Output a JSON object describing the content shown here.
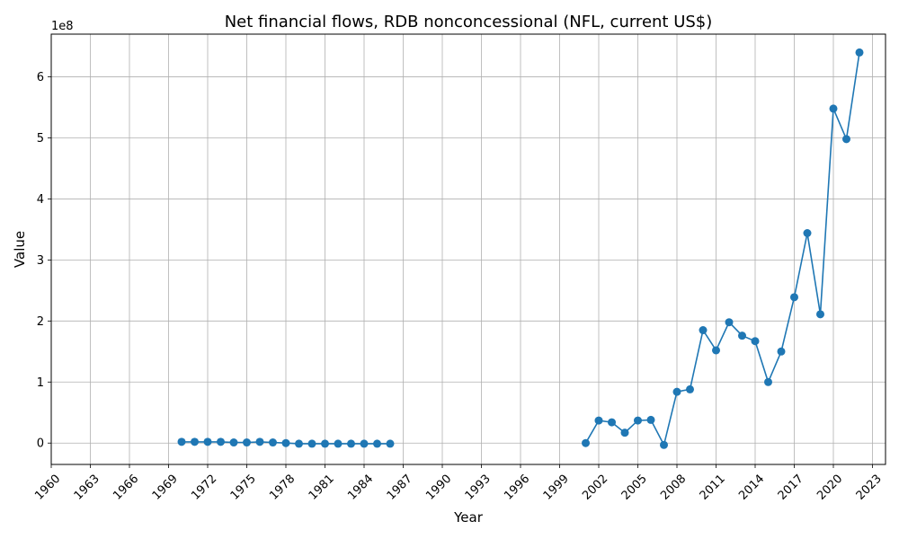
{
  "chart_data": {
    "type": "line",
    "title": "Net financial flows, RDB nonconcessional (NFL, current US$)",
    "xlabel": "Year",
    "ylabel": "Value",
    "y_scale_label": "1e8",
    "y_unit_multiplier": 100000000,
    "xlim": [
      1960,
      2024
    ],
    "ylim": [
      -0.35,
      6.7
    ],
    "x_ticks": [
      1960,
      1963,
      1966,
      1969,
      1972,
      1975,
      1978,
      1981,
      1984,
      1987,
      1990,
      1993,
      1996,
      1999,
      2002,
      2005,
      2008,
      2011,
      2014,
      2017,
      2020,
      2023
    ],
    "x_tick_labels": [
      "1960",
      "1963",
      "1966",
      "1969",
      "1972",
      "1975",
      "1978",
      "1981",
      "1984",
      "1987",
      "1990",
      "1993",
      "1996",
      "1999",
      "2002",
      "2005",
      "2008",
      "2011",
      "2014",
      "2017",
      "2020",
      "2023"
    ],
    "y_ticks": [
      0,
      1,
      2,
      3,
      4,
      5,
      6
    ],
    "y_tick_labels": [
      "0",
      "1",
      "2",
      "3",
      "4",
      "5",
      "6"
    ],
    "grid": true,
    "line_color": "#1f77b4",
    "series": [
      {
        "segments": [
          {
            "x": [
              1970,
              1971,
              1972,
              1973,
              1974,
              1975,
              1976,
              1977,
              1978,
              1979,
              1980,
              1981,
              1982,
              1983,
              1984,
              1985,
              1986
            ],
            "y": [
              0.02,
              0.02,
              0.02,
              0.02,
              0.01,
              0.01,
              0.02,
              0.01,
              0.0,
              -0.01,
              -0.01,
              -0.01,
              -0.01,
              -0.01,
              -0.01,
              -0.01,
              -0.01
            ]
          },
          {
            "x": [
              2001,
              2002,
              2003,
              2004,
              2005,
              2006,
              2007,
              2008,
              2009,
              2010,
              2011,
              2012,
              2013,
              2014,
              2015,
              2016,
              2017,
              2018,
              2019,
              2020,
              2021,
              2022
            ],
            "y": [
              0.0,
              0.37,
              0.34,
              0.17,
              0.37,
              0.38,
              -0.03,
              0.84,
              0.88,
              1.85,
              1.52,
              1.98,
              1.76,
              1.67,
              1.0,
              1.5,
              2.39,
              3.44,
              2.11,
              5.48,
              4.98,
              6.4
            ]
          }
        ]
      }
    ]
  }
}
